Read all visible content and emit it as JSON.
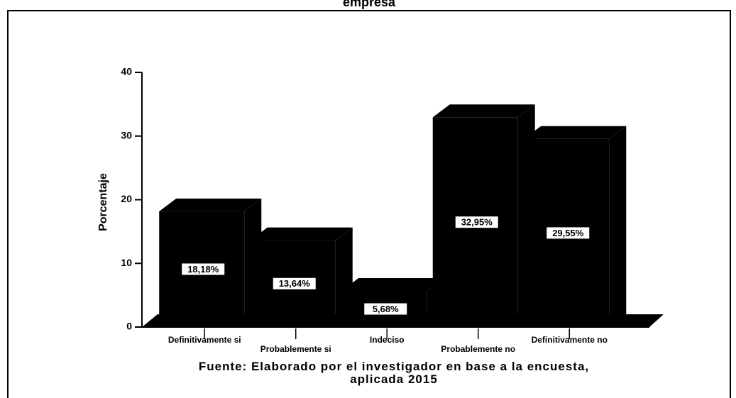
{
  "chart_data": {
    "type": "bar3d",
    "title": "empresa",
    "ylabel": "Porcentaje",
    "categories": [
      "Definitivamente si",
      "Probablemente si",
      "Indeciso",
      "Probablemente no",
      "Definitivamente no"
    ],
    "values": [
      18.18,
      13.64,
      5.68,
      32.95,
      29.55
    ],
    "value_labels": [
      "18,18%",
      "13,64%",
      "5,68%",
      "32,95%",
      "29,55%"
    ],
    "color": "#000000",
    "ylim": [
      0,
      40
    ],
    "yticks": [
      0,
      10,
      20,
      30,
      40
    ],
    "source": "Fuente: Elaborado por el investigador en base a la encuesta, aplicada 2015"
  }
}
